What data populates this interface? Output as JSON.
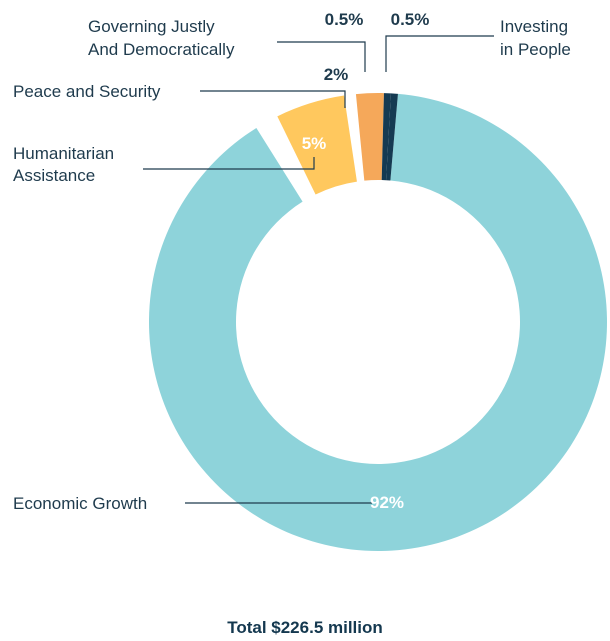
{
  "chart_data": {
    "type": "pie",
    "title": "",
    "total_label": "Total $226.5 million",
    "slices": [
      {
        "name": "Economic Growth",
        "value": 92,
        "label": "92%",
        "color": "#8ed3da",
        "label_color": "#ffffff"
      },
      {
        "name": "Humanitarian Assistance",
        "value": 5,
        "label": "5%",
        "color": "#ffc85e",
        "label_color": "#ffffff"
      },
      {
        "name": "Peace and Security",
        "value": 2,
        "label": "2%",
        "color": "#f5a85a",
        "label_color": "#1f3b4d"
      },
      {
        "name": "Governing Justly And Democratically",
        "value": 0.5,
        "label": "0.5%",
        "color": "#153a52",
        "label_color": "#1f3b4d"
      },
      {
        "name": "Investing in People",
        "value": 0.5,
        "label": "0.5%",
        "color": "#153a52",
        "label_color": "#1f3b4d"
      }
    ]
  }
}
